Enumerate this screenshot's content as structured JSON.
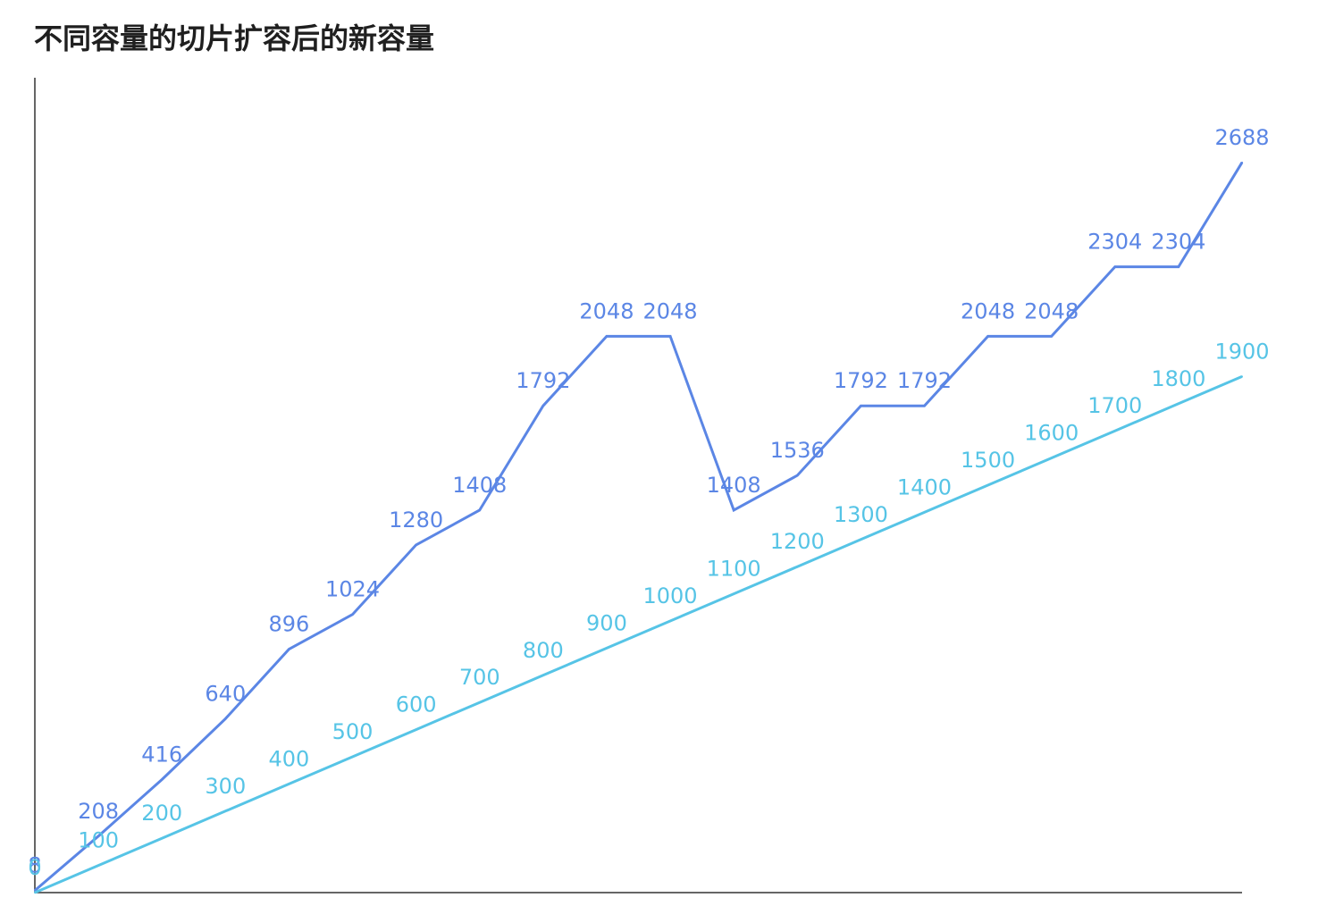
{
  "title": "不同容量的切片扩容后的新容量",
  "chart_data": {
    "type": "line",
    "title": "不同容量的切片扩容后的新容量",
    "xlabel": "",
    "ylabel": "",
    "x": [
      0,
      1,
      2,
      3,
      4,
      5,
      6,
      7,
      8,
      9,
      10,
      11,
      12,
      13,
      14,
      15,
      16,
      17,
      18,
      19
    ],
    "ylim": [
      0,
      3000
    ],
    "grid": false,
    "legend": "none",
    "series": [
      {
        "color": "#5b86e5",
        "values": [
          8,
          208,
          416,
          640,
          896,
          1024,
          1280,
          1408,
          1792,
          2048,
          2048,
          1408,
          1536,
          1792,
          1792,
          2048,
          2048,
          2304,
          2304,
          2688
        ],
        "labels": [
          "8",
          "208",
          "416",
          "640",
          "896",
          "1024",
          "1280",
          "1408",
          "1792",
          "2048",
          "2048",
          "1408",
          "1536",
          "1792",
          "1792",
          "2048",
          "2048",
          "2304",
          "2304",
          "2688"
        ]
      },
      {
        "color": "#56c4e6",
        "values": [
          0,
          100,
          200,
          300,
          400,
          500,
          600,
          700,
          800,
          900,
          1000,
          1100,
          1200,
          1300,
          1400,
          1500,
          1600,
          1700,
          1800,
          1900
        ],
        "labels": [
          "0",
          "100",
          "200",
          "300",
          "400",
          "500",
          "600",
          "700",
          "800",
          "900",
          "1000",
          "1100",
          "1200",
          "1300",
          "1400",
          "1500",
          "1600",
          "1700",
          "1800",
          "1900"
        ]
      }
    ]
  }
}
